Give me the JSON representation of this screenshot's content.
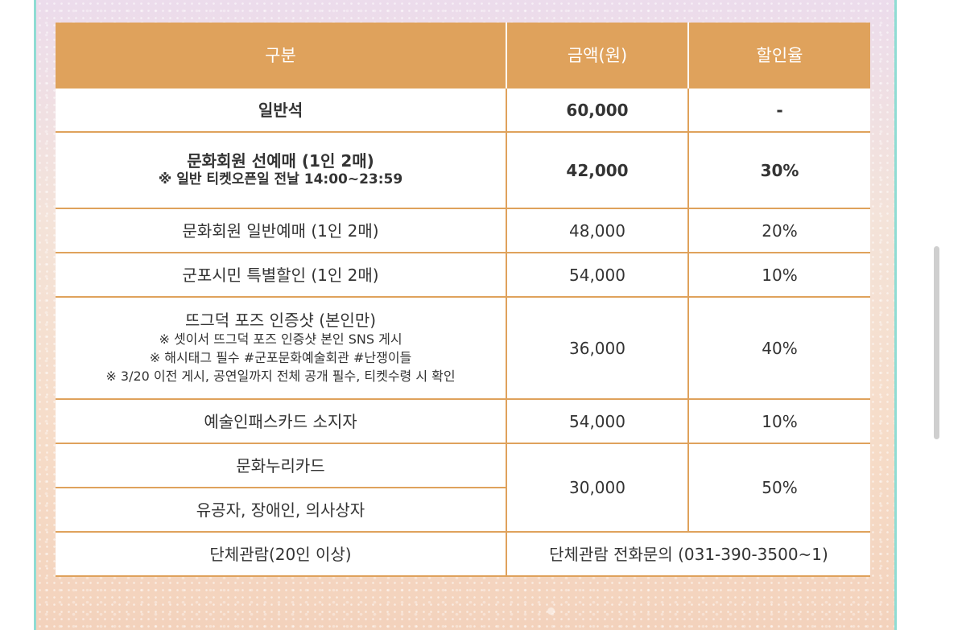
{
  "table": {
    "headers": [
      "구분",
      "금액(원)",
      "할인율"
    ],
    "rows": {
      "general": {
        "label": "일반석",
        "price": "60,000",
        "rate": "-"
      },
      "member_pre": {
        "label": "문화회원 선예매 (1인 2매)",
        "note": "※ 일반 티켓오픈일 전날 14:00~23:59",
        "price": "42,000",
        "rate": "30%"
      },
      "member_general": {
        "label": "문화회원 일반예매 (1인 2매)",
        "price": "48,000",
        "rate": "20%"
      },
      "citizen": {
        "label": "군포시민 특별할인 (1인 2매)",
        "price": "54,000",
        "rate": "10%"
      },
      "pose": {
        "label": "뜨그덕 포즈 인증샷 (본인만)",
        "notes": [
          "※ 셋이서 뜨그덕 포즈 인증샷 본인 SNS 게시",
          "※ 해시태그 필수 #군포문화예술회관 #난쟁이들",
          "※ 3/20 이전 게시, 공연일까지 전체 공개 필수, 티켓수령 시 확인"
        ],
        "price": "36,000",
        "rate": "40%"
      },
      "artpass": {
        "label": "예술인패스카드 소지자",
        "price": "54,000",
        "rate": "10%"
      },
      "nuri": {
        "label": "문화누리카드"
      },
      "merit": {
        "label": "유공자, 장애인, 의사상자"
      },
      "nuri_merit": {
        "price": "30,000",
        "rate": "50%"
      },
      "group": {
        "label": "단체관람(20인 이상)",
        "info": "단체관람 전화문의 (031-390-3500~1)"
      }
    }
  },
  "colors": {
    "accent": "#dfa25c",
    "highlight_text": "#d79a53",
    "frame": "#8fdcd3"
  }
}
